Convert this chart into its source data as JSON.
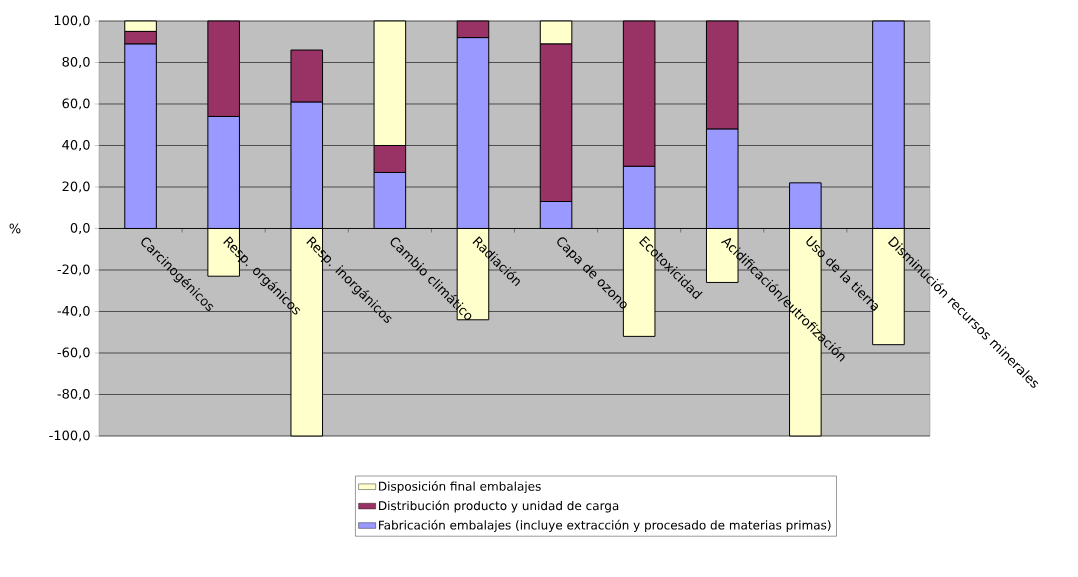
{
  "chart_data": {
    "type": "bar",
    "stacked": true,
    "ylabel": "%",
    "categories": [
      "Carcinogénicos",
      "Resp. orgánicos",
      "Resp. inorgánicos",
      "Cambio climático",
      "Radiación",
      "Capa de ozono",
      "Ecotoxicidad",
      "Acidificación/eutrofización",
      "Uso de la tierra",
      "Disminución recursos minerales"
    ],
    "series": [
      {
        "name": "Fabricación embalajes (incluye extracción y procesado de materias primas)",
        "color": "#9999ff",
        "values": [
          89,
          54,
          61,
          27,
          92,
          13,
          30,
          48,
          22,
          100
        ]
      },
      {
        "name": "Distribución producto y unidad de carga",
        "color": "#993366",
        "values": [
          6,
          46,
          25,
          13,
          8,
          76,
          70,
          52,
          0,
          0
        ]
      },
      {
        "name": "Disposición final embalajes",
        "color": "#ffffcc",
        "values": [
          5,
          -23,
          -100,
          60,
          -44,
          11,
          -52,
          -26,
          -100,
          -56
        ]
      }
    ],
    "ylim": [
      -100,
      100
    ],
    "yticks": [
      {
        "value": -100,
        "label": "-100,0"
      },
      {
        "value": -80,
        "label": "-80,0"
      },
      {
        "value": -60,
        "label": "-60,0"
      },
      {
        "value": -40,
        "label": "-40,0"
      },
      {
        "value": -20,
        "label": "-20,0"
      },
      {
        "value": 0,
        "label": "0,0"
      },
      {
        "value": 20,
        "label": "20,0"
      },
      {
        "value": 40,
        "label": "40,0"
      },
      {
        "value": 60,
        "label": "60,0"
      },
      {
        "value": 80,
        "label": "80,0"
      },
      {
        "value": 100,
        "label": "100,0"
      }
    ],
    "grid": "y",
    "legend": "bottom"
  }
}
